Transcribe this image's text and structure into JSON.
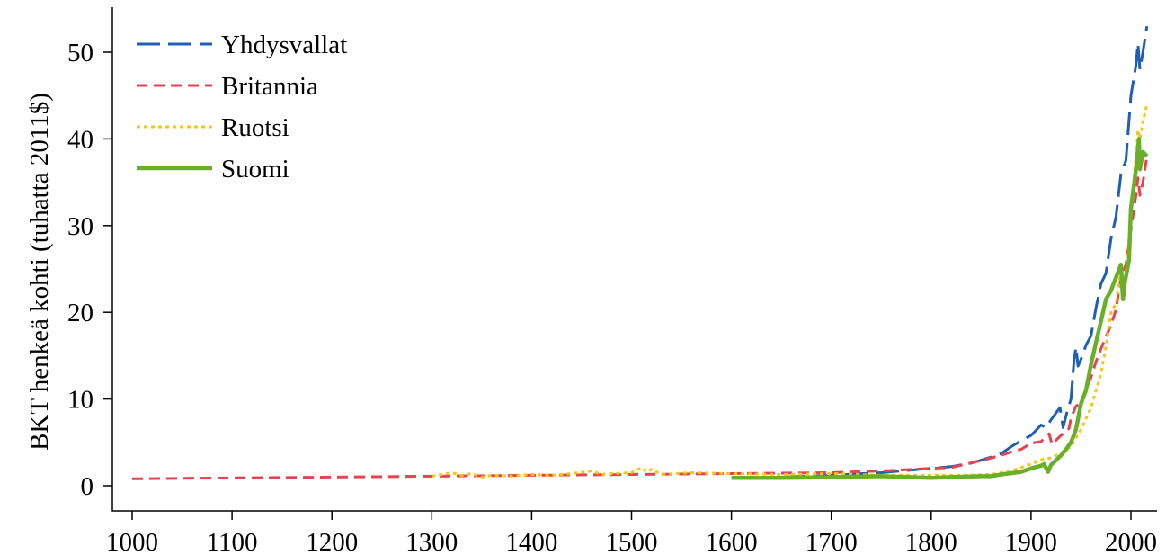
{
  "chart_data": {
    "type": "line",
    "title": "",
    "xlabel": "",
    "ylabel": "BKT henkeä kohti (tuhatta 2011$)",
    "xlim": [
      1000,
      2016
    ],
    "ylim": [
      0,
      53
    ],
    "x_ticks": [
      "1000",
      "1100",
      "1200",
      "1300",
      "1400",
      "1500",
      "1600",
      "1700",
      "1800",
      "1900",
      "2000"
    ],
    "y_ticks": [
      "0",
      "10",
      "20",
      "30",
      "40",
      "50"
    ],
    "grid": false,
    "legend_position": "top-left",
    "series": [
      {
        "name": "Yhdysvallat",
        "color": "#1f5fb4",
        "style": "long-dash",
        "points": [
          [
            1650,
            1.0
          ],
          [
            1700,
            1.2
          ],
          [
            1750,
            1.5
          ],
          [
            1800,
            2.0
          ],
          [
            1820,
            2.2
          ],
          [
            1840,
            2.6
          ],
          [
            1860,
            3.3
          ],
          [
            1870,
            3.7
          ],
          [
            1880,
            4.5
          ],
          [
            1890,
            5.2
          ],
          [
            1900,
            5.8
          ],
          [
            1905,
            6.4
          ],
          [
            1910,
            7.0
          ],
          [
            1915,
            6.7
          ],
          [
            1920,
            7.6
          ],
          [
            1925,
            8.4
          ],
          [
            1929,
            9.0
          ],
          [
            1932,
            6.7
          ],
          [
            1936,
            8.5
          ],
          [
            1940,
            10.0
          ],
          [
            1943,
            14.5
          ],
          [
            1945,
            16.0
          ],
          [
            1947,
            13.8
          ],
          [
            1950,
            14.6
          ],
          [
            1955,
            16.2
          ],
          [
            1960,
            17.3
          ],
          [
            1965,
            20.5
          ],
          [
            1970,
            23.3
          ],
          [
            1975,
            24.5
          ],
          [
            1980,
            28.5
          ],
          [
            1985,
            31.0
          ],
          [
            1990,
            36.0
          ],
          [
            1995,
            37.5
          ],
          [
            2000,
            45.0
          ],
          [
            2005,
            48.5
          ],
          [
            2007,
            51.0
          ],
          [
            2009,
            48.0
          ],
          [
            2012,
            50.0
          ],
          [
            2016,
            53.0
          ]
        ]
      },
      {
        "name": "Britannia",
        "color": "#e8424e",
        "style": "dash",
        "points": [
          [
            1000,
            0.8
          ],
          [
            1100,
            0.9
          ],
          [
            1200,
            1.0
          ],
          [
            1300,
            1.1
          ],
          [
            1400,
            1.2
          ],
          [
            1500,
            1.3
          ],
          [
            1600,
            1.4
          ],
          [
            1700,
            1.5
          ],
          [
            1750,
            1.7
          ],
          [
            1800,
            2.0
          ],
          [
            1820,
            2.1
          ],
          [
            1850,
            2.9
          ],
          [
            1870,
            3.5
          ],
          [
            1880,
            3.9
          ],
          [
            1890,
            4.2
          ],
          [
            1900,
            4.9
          ],
          [
            1910,
            5.1
          ],
          [
            1913,
            5.4
          ],
          [
            1918,
            6.0
          ],
          [
            1921,
            4.8
          ],
          [
            1930,
            5.8
          ],
          [
            1938,
            6.6
          ],
          [
            1940,
            7.8
          ],
          [
            1945,
            9.2
          ],
          [
            1950,
            9.5
          ],
          [
            1955,
            11.0
          ],
          [
            1960,
            12.5
          ],
          [
            1965,
            14.3
          ],
          [
            1970,
            15.8
          ],
          [
            1975,
            17.2
          ],
          [
            1980,
            18.5
          ],
          [
            1985,
            20.3
          ],
          [
            1990,
            24.0
          ],
          [
            1995,
            25.5
          ],
          [
            2000,
            29.5
          ],
          [
            2005,
            33.5
          ],
          [
            2007,
            35.5
          ],
          [
            2009,
            33.5
          ],
          [
            2012,
            35.0
          ],
          [
            2016,
            38.0
          ]
        ]
      },
      {
        "name": "Ruotsi",
        "color": "#f5c518",
        "style": "dot",
        "points": [
          [
            1300,
            1.1
          ],
          [
            1320,
            1.5
          ],
          [
            1330,
            1.2
          ],
          [
            1340,
            1.4
          ],
          [
            1350,
            1.0
          ],
          [
            1360,
            1.2
          ],
          [
            1380,
            1.1
          ],
          [
            1400,
            1.3
          ],
          [
            1420,
            1.2
          ],
          [
            1440,
            1.4
          ],
          [
            1460,
            1.7
          ],
          [
            1470,
            1.3
          ],
          [
            1480,
            1.4
          ],
          [
            1500,
            1.5
          ],
          [
            1510,
            2.1
          ],
          [
            1515,
            1.6
          ],
          [
            1520,
            1.9
          ],
          [
            1530,
            1.3
          ],
          [
            1560,
            1.5
          ],
          [
            1600,
            1.4
          ],
          [
            1650,
            1.3
          ],
          [
            1700,
            1.4
          ],
          [
            1750,
            1.2
          ],
          [
            1800,
            1.2
          ],
          [
            1830,
            1.2
          ],
          [
            1860,
            1.3
          ],
          [
            1880,
            1.7
          ],
          [
            1900,
            2.5
          ],
          [
            1910,
            3.0
          ],
          [
            1920,
            3.2
          ],
          [
            1930,
            3.8
          ],
          [
            1940,
            4.5
          ],
          [
            1950,
            6.5
          ],
          [
            1960,
            9.0
          ],
          [
            1970,
            13.0
          ],
          [
            1975,
            16.0
          ],
          [
            1980,
            20.0
          ],
          [
            1985,
            21.0
          ],
          [
            1990,
            25.0
          ],
          [
            1993,
            23.5
          ],
          [
            1995,
            24.5
          ],
          [
            2000,
            31.0
          ],
          [
            2005,
            38.0
          ],
          [
            2007,
            41.0
          ],
          [
            2009,
            40.0
          ],
          [
            2012,
            42.0
          ],
          [
            2016,
            44.0
          ]
        ]
      },
      {
        "name": "Suomi",
        "color": "#6aaf2a",
        "style": "solid",
        "points": [
          [
            1600,
            0.9
          ],
          [
            1650,
            0.9
          ],
          [
            1700,
            1.0
          ],
          [
            1750,
            1.1
          ],
          [
            1800,
            0.9
          ],
          [
            1820,
            1.0
          ],
          [
            1850,
            1.1
          ],
          [
            1860,
            1.1
          ],
          [
            1870,
            1.3
          ],
          [
            1890,
            1.6
          ],
          [
            1900,
            2.0
          ],
          [
            1910,
            2.3
          ],
          [
            1913,
            2.5
          ],
          [
            1917,
            1.6
          ],
          [
            1920,
            2.4
          ],
          [
            1930,
            3.5
          ],
          [
            1935,
            4.2
          ],
          [
            1940,
            5.0
          ],
          [
            1945,
            6.5
          ],
          [
            1950,
            9.5
          ],
          [
            1955,
            11.0
          ],
          [
            1960,
            14.0
          ],
          [
            1965,
            16.5
          ],
          [
            1970,
            19.0
          ],
          [
            1975,
            21.5
          ],
          [
            1980,
            22.5
          ],
          [
            1985,
            24.0
          ],
          [
            1990,
            25.5
          ],
          [
            1992,
            21.5
          ],
          [
            1994,
            23.5
          ],
          [
            1998,
            26.0
          ],
          [
            2000,
            32.0
          ],
          [
            2005,
            36.5
          ],
          [
            2008,
            40.0
          ],
          [
            2009,
            36.5
          ],
          [
            2012,
            38.5
          ],
          [
            2016,
            38.0
          ]
        ]
      }
    ]
  }
}
